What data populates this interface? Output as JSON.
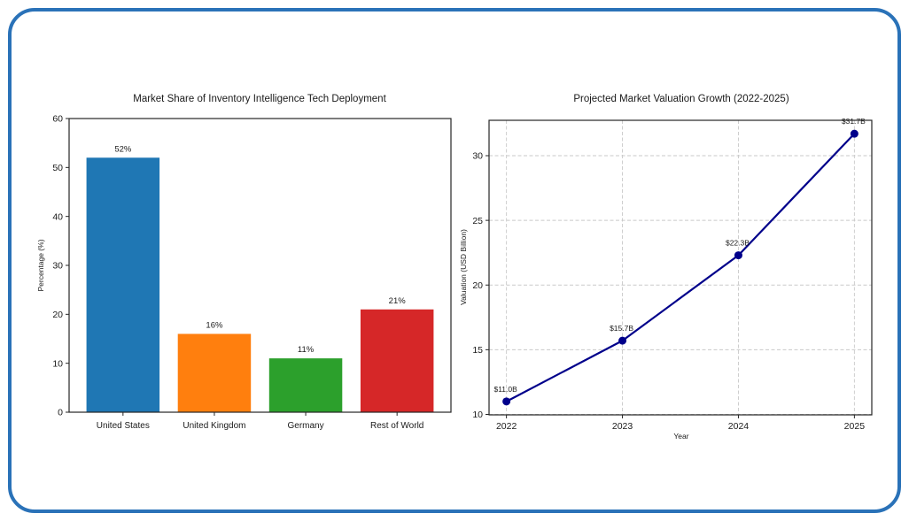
{
  "page": {
    "background": "#ffffff",
    "frame_border_color": "#2a72b8"
  },
  "chart_data": [
    {
      "type": "bar",
      "title": "Market Share of Inventory Intelligence Tech Deployment",
      "xlabel": "",
      "ylabel": "Percentage (%)",
      "categories": [
        "United States",
        "United Kingdom",
        "Germany",
        "Rest of World"
      ],
      "values": [
        52,
        16,
        11,
        21
      ],
      "bar_labels": [
        "52%",
        "16%",
        "11%",
        "21%"
      ],
      "bar_colors": [
        "#1f77b4",
        "#ff7f0e",
        "#2ca02c",
        "#d62728"
      ],
      "ylim": [
        0,
        60
      ],
      "yticks": [
        0,
        10,
        20,
        30,
        40,
        50,
        60
      ],
      "grid": false,
      "legend": "none"
    },
    {
      "type": "line",
      "title": "Projected Market Valuation Growth (2022-2025)",
      "xlabel": "Year",
      "ylabel": "Valuation (USD Billion)",
      "x": [
        2022,
        2023,
        2024,
        2025
      ],
      "values": [
        11.0,
        15.7,
        22.3,
        31.7
      ],
      "point_labels": [
        "$11.0B",
        "$15.7B",
        "$22.3B",
        "$31.7B"
      ],
      "line_color": "#00008b",
      "marker": "circle",
      "xlim": [
        2021.85,
        2025.15
      ],
      "ylim": [
        9.965,
        32.735
      ],
      "yticks": [
        10,
        15,
        20,
        25,
        30
      ],
      "xticks": [
        2022,
        2023,
        2024,
        2025
      ],
      "grid": true,
      "grid_style": "dashed",
      "grid_color": "#c9c9c9",
      "legend": "none"
    }
  ]
}
